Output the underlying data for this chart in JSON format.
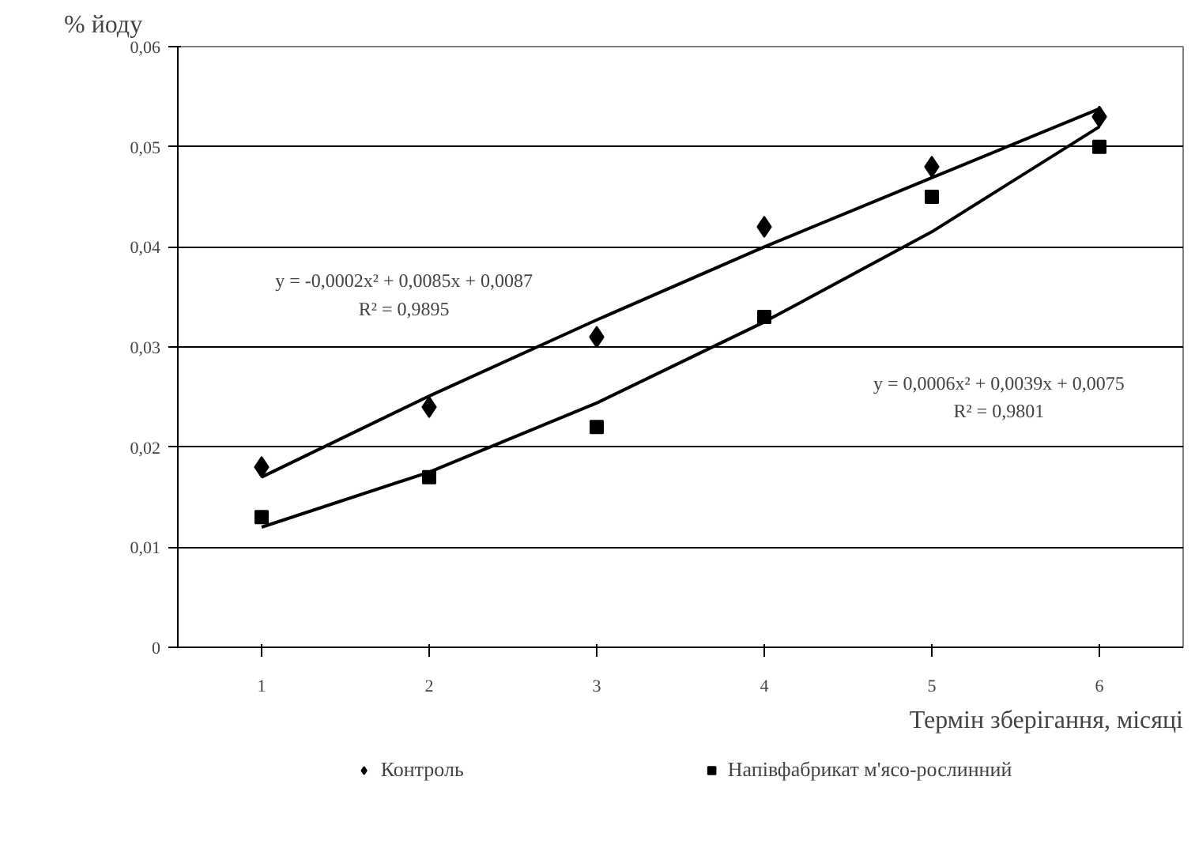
{
  "chart_data": {
    "type": "scatter",
    "xlabel": "Термін зберігання, місяці",
    "ylabel": "% йоду",
    "x": [
      1,
      2,
      3,
      4,
      5,
      6
    ],
    "series": [
      {
        "name": "Контроль",
        "color": "#000000",
        "marker": "diamond",
        "values": [
          0.018,
          0.024,
          0.031,
          0.042,
          0.048,
          0.053
        ]
      },
      {
        "name": "Напівфабрикат м'ясо-рослинний",
        "color": "#000000",
        "marker": "square",
        "values": [
          0.013,
          0.017,
          0.022,
          0.033,
          0.045,
          0.05
        ]
      },
      {
        "type": "line",
        "color": "#000000",
        "x": [
          1,
          2,
          3,
          4,
          5,
          6
        ],
        "values": [
          0.017,
          0.0251,
          0.0327,
          0.04,
          0.0469,
          0.0538
        ]
      },
      {
        "type": "line",
        "color": "#000000",
        "x": [
          1,
          2,
          3,
          4,
          5,
          6
        ],
        "values": [
          0.012,
          0.0175,
          0.0244,
          0.0325,
          0.0415,
          0.052
        ]
      }
    ],
    "annotations": [
      "y = -0,0002x² + 0,0085x + 0,0087",
      "R² = 0,9895",
      "y = 0,0006x² + 0,0039x + 0,0075",
      "R² = 0,9801"
    ],
    "xlim": [
      0.5,
      6.5
    ],
    "xticks": [
      1,
      2,
      3,
      4,
      5,
      6
    ],
    "ylim": [
      0,
      0.06
    ],
    "yticks": [
      {
        "value": 0,
        "label": "0"
      },
      {
        "value": 0.01,
        "label": "0,01"
      },
      {
        "value": 0.02,
        "label": "0,02"
      },
      {
        "value": 0.03,
        "label": "0,03"
      },
      {
        "value": 0.04,
        "label": "0,04"
      },
      {
        "value": 0.05,
        "label": "0,05"
      },
      {
        "value": 0.06,
        "label": "0,06"
      }
    ],
    "grid": "y",
    "legend": "bottom"
  }
}
